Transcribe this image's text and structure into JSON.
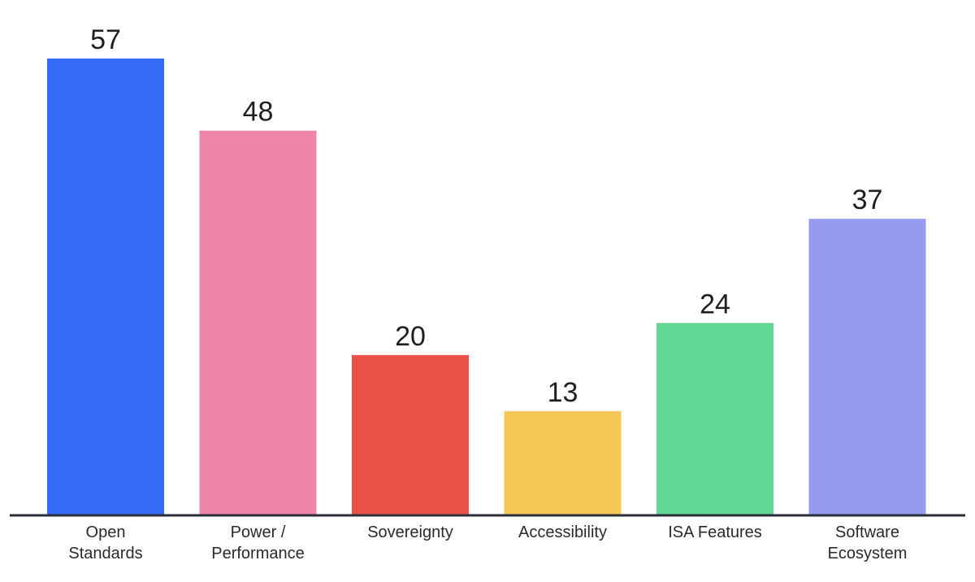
{
  "chart_data": {
    "type": "bar",
    "categories": [
      "Open\nStandards",
      "Power /\nPerformance",
      "Sovereignty",
      "Accessibility",
      "ISA Features",
      "Software\nEcosystem"
    ],
    "values": [
      57,
      48,
      20,
      13,
      24,
      37
    ],
    "colors": [
      "#356bf5",
      "#ee86a8",
      "#e95046",
      "#f4c757",
      "#62d793",
      "#969bef"
    ],
    "axis_color": "#2b2f3a",
    "title": "",
    "xlabel": "",
    "ylabel": "",
    "ylim": [
      0,
      57
    ],
    "grid": false,
    "legend": "none",
    "data_labels": true
  }
}
